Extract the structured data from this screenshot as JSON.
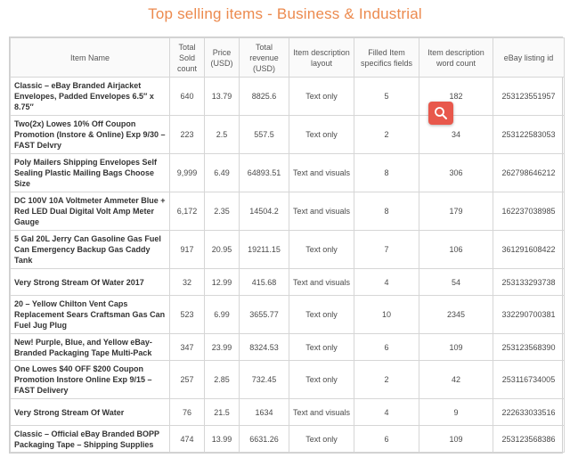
{
  "title": "Top selling items - Business & Industrial",
  "table": {
    "headers": [
      "Item Name",
      "Total Sold count",
      "Price (USD)",
      "Total revenue (USD)",
      "Item description layout",
      "Filled Item specifics fields",
      "Item description word count",
      "eBay listing id"
    ],
    "rows": [
      {
        "name": "Classic – eBay Branded Airjacket Envelopes, Padded Envelopes 6.5″ x 8.75″",
        "sold": "640",
        "price": "13.79",
        "revenue": "8825.6",
        "layout": "Text only",
        "fields": "5",
        "words": "182",
        "id": "253123551957"
      },
      {
        "name": "Two(2x) Lowes 10% Off Coupon Promotion (Instore & Online) Exp 9/30 – FAST Delvry",
        "sold": "223",
        "price": "2.5",
        "revenue": "557.5",
        "layout": "Text only",
        "fields": "2",
        "words": "34",
        "id": "253122583053"
      },
      {
        "name": "Poly Mailers Shipping Envelopes Self Sealing Plastic Mailing Bags Choose Size",
        "sold": "9,999",
        "price": "6.49",
        "revenue": "64893.51",
        "layout": "Text and visuals",
        "fields": "8",
        "words": "306",
        "id": "262798646212"
      },
      {
        "name": "DC 100V 10A Voltmeter Ammeter Blue + Red LED Dual Digital Volt Amp Meter Gauge",
        "sold": "6,172",
        "price": "2.35",
        "revenue": "14504.2",
        "layout": "Text and visuals",
        "fields": "8",
        "words": "179",
        "id": "162237038985"
      },
      {
        "name": "5 Gal 20L Jerry Can Gasoline Gas Fuel Can Emergency Backup Gas Caddy Tank",
        "sold": "917",
        "price": "20.95",
        "revenue": "19211.15",
        "layout": "Text only",
        "fields": "7",
        "words": "106",
        "id": "361291608422"
      },
      {
        "name": "Very Strong Stream Of Water 2017",
        "sold": "32",
        "price": "12.99",
        "revenue": "415.68",
        "layout": "Text and visuals",
        "fields": "4",
        "words": "54",
        "id": "253133293738"
      },
      {
        "name": "20 – Yellow Chilton Vent Caps Replacement Sears Craftsman Gas Can Fuel Jug Plug",
        "sold": "523",
        "price": "6.99",
        "revenue": "3655.77",
        "layout": "Text only",
        "fields": "10",
        "words": "2345",
        "id": "332290700381"
      },
      {
        "name": "New! Purple, Blue, and Yellow eBay-Branded Packaging Tape Multi-Pack",
        "sold": "347",
        "price": "23.99",
        "revenue": "8324.53",
        "layout": "Text only",
        "fields": "6",
        "words": "109",
        "id": "253123568390"
      },
      {
        "name": "One Lowes $40 OFF $200 Coupon Promotion Instore Online Exp 9/15 – FAST Delivery",
        "sold": "257",
        "price": "2.85",
        "revenue": "732.45",
        "layout": "Text only",
        "fields": "2",
        "words": "42",
        "id": "253116734005"
      },
      {
        "name": "Very Strong Stream Of Water",
        "sold": "76",
        "price": "21.5",
        "revenue": "1634",
        "layout": "Text and visuals",
        "fields": "4",
        "words": "9",
        "id": "222633033516"
      },
      {
        "name": "Classic – Official eBay Branded BOPP Packaging Tape – Shipping Supplies",
        "sold": "474",
        "price": "13.99",
        "revenue": "6631.26",
        "layout": "Text only",
        "fields": "6",
        "words": "109",
        "id": "253123568386"
      }
    ]
  },
  "search_icon": "search-icon",
  "colors": {
    "title": "#ec8a4e",
    "search_button": "#e8584c"
  }
}
